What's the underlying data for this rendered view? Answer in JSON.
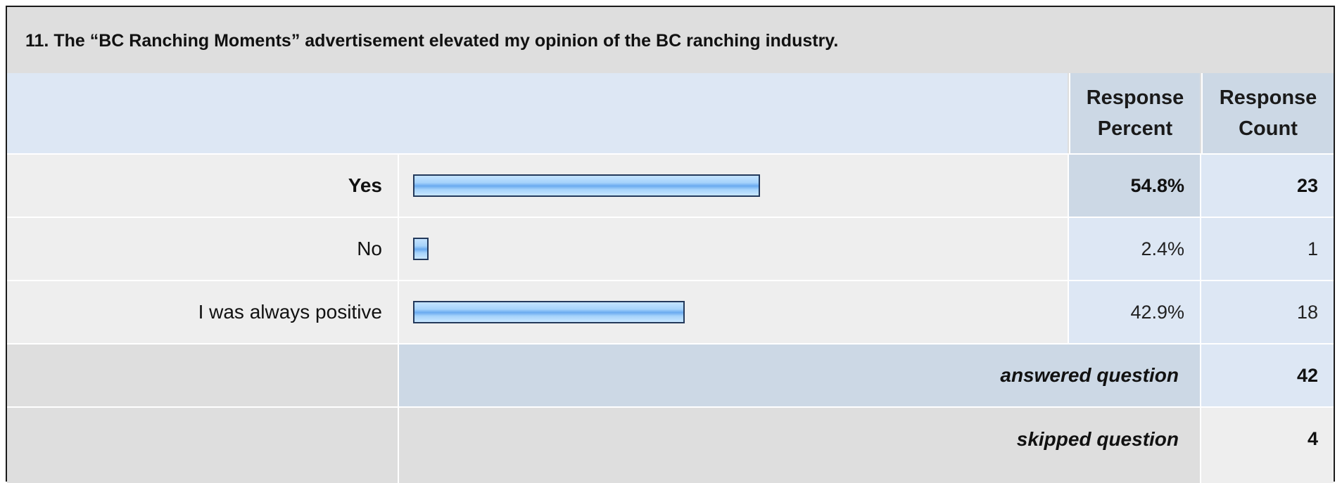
{
  "question": {
    "title": "11. The “BC Ranching Moments” advertisement elevated my opinion of the BC ranching industry."
  },
  "headers": {
    "response_percent_line1": "Response",
    "response_percent_line2": "Percent",
    "response_count_line1": "Response",
    "response_count_line2": "Count"
  },
  "rows": [
    {
      "label": "Yes",
      "percent": "54.8%",
      "count": "23"
    },
    {
      "label": "No",
      "percent": "2.4%",
      "count": "1"
    },
    {
      "label": "I was always positive",
      "percent": "42.9%",
      "count": "18"
    }
  ],
  "summary": {
    "answered_label": "answered question",
    "answered_value": "42",
    "skipped_label": "skipped question",
    "skipped_value": "4"
  },
  "colors": {
    "bar_fill": "#6aaaf0",
    "bar_border": "#23395b",
    "header_bg": "#dde7f4",
    "column_header_bg": "#ccd8e5",
    "row_bg": "#eeeeee"
  },
  "chart_data": {
    "type": "bar",
    "orientation": "horizontal",
    "categories": [
      "Yes",
      "No",
      "I was always positive"
    ],
    "values": [
      54.8,
      2.4,
      42.9
    ],
    "counts": [
      23,
      1,
      18
    ],
    "unit": "%"
  }
}
